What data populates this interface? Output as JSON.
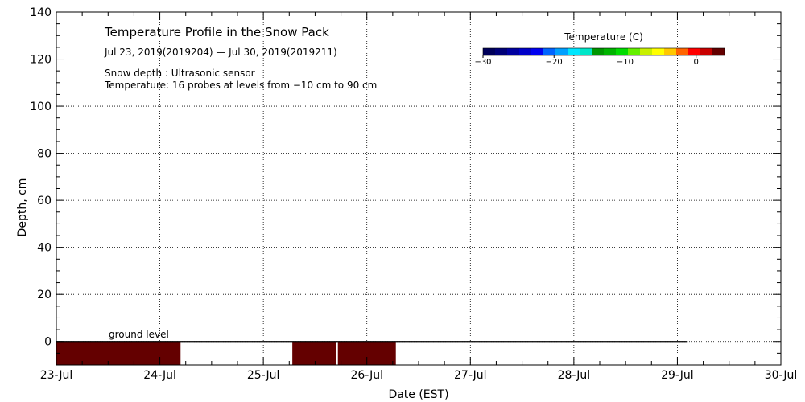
{
  "chart_data": {
    "type": "heatmap",
    "title": "Temperature Profile in the Snow Pack",
    "subtitle": "Jul 23, 2019(2019204) — Jul 30, 2019(2019211)",
    "notes": [
      "Snow depth : Ultrasonic sensor",
      "Temperature: 16 probes at levels from −10 cm to 90 cm"
    ],
    "xlabel": "Date (EST)",
    "ylabel": "Depth, cm",
    "x_ticks": [
      "23-Jul",
      "24-Jul",
      "25-Jul",
      "26-Jul",
      "27-Jul",
      "28-Jul",
      "29-Jul",
      "30-Jul"
    ],
    "xlim": [
      0,
      7
    ],
    "ylim": [
      -10,
      140
    ],
    "y_ticks": [
      0,
      20,
      40,
      60,
      80,
      100,
      120,
      140
    ],
    "grid": true,
    "ground_label": "ground level",
    "ground_level": 0,
    "ground_line_end_day": 6.1,
    "temperature_blocks": [
      {
        "start_day": 0.0,
        "end_day": 1.2,
        "depth_top": 0,
        "depth_bottom": -10,
        "temperature": 3
      },
      {
        "start_day": 2.28,
        "end_day": 2.7,
        "depth_top": 0,
        "depth_bottom": -10,
        "temperature": 3
      },
      {
        "start_day": 2.72,
        "end_day": 3.28,
        "depth_top": 0,
        "depth_bottom": -10,
        "temperature": 3
      }
    ],
    "colorbar": {
      "title": "Temperature (C)",
      "range": [
        -30,
        4
      ],
      "ticks": [
        -30,
        -20,
        -10,
        0
      ],
      "tick_labels": [
        "−30",
        "−20",
        "−10",
        "0"
      ],
      "colors": [
        "#00005a",
        "#000078",
        "#0000a0",
        "#0000c8",
        "#0000f0",
        "#0064ff",
        "#00a0ff",
        "#00e6ff",
        "#00e6c8",
        "#009600",
        "#00b400",
        "#00dc00",
        "#64f000",
        "#c8f000",
        "#ffff00",
        "#ffc800",
        "#ff6400",
        "#ff0000",
        "#c80000",
        "#640000"
      ]
    },
    "block_color": "#640000"
  }
}
